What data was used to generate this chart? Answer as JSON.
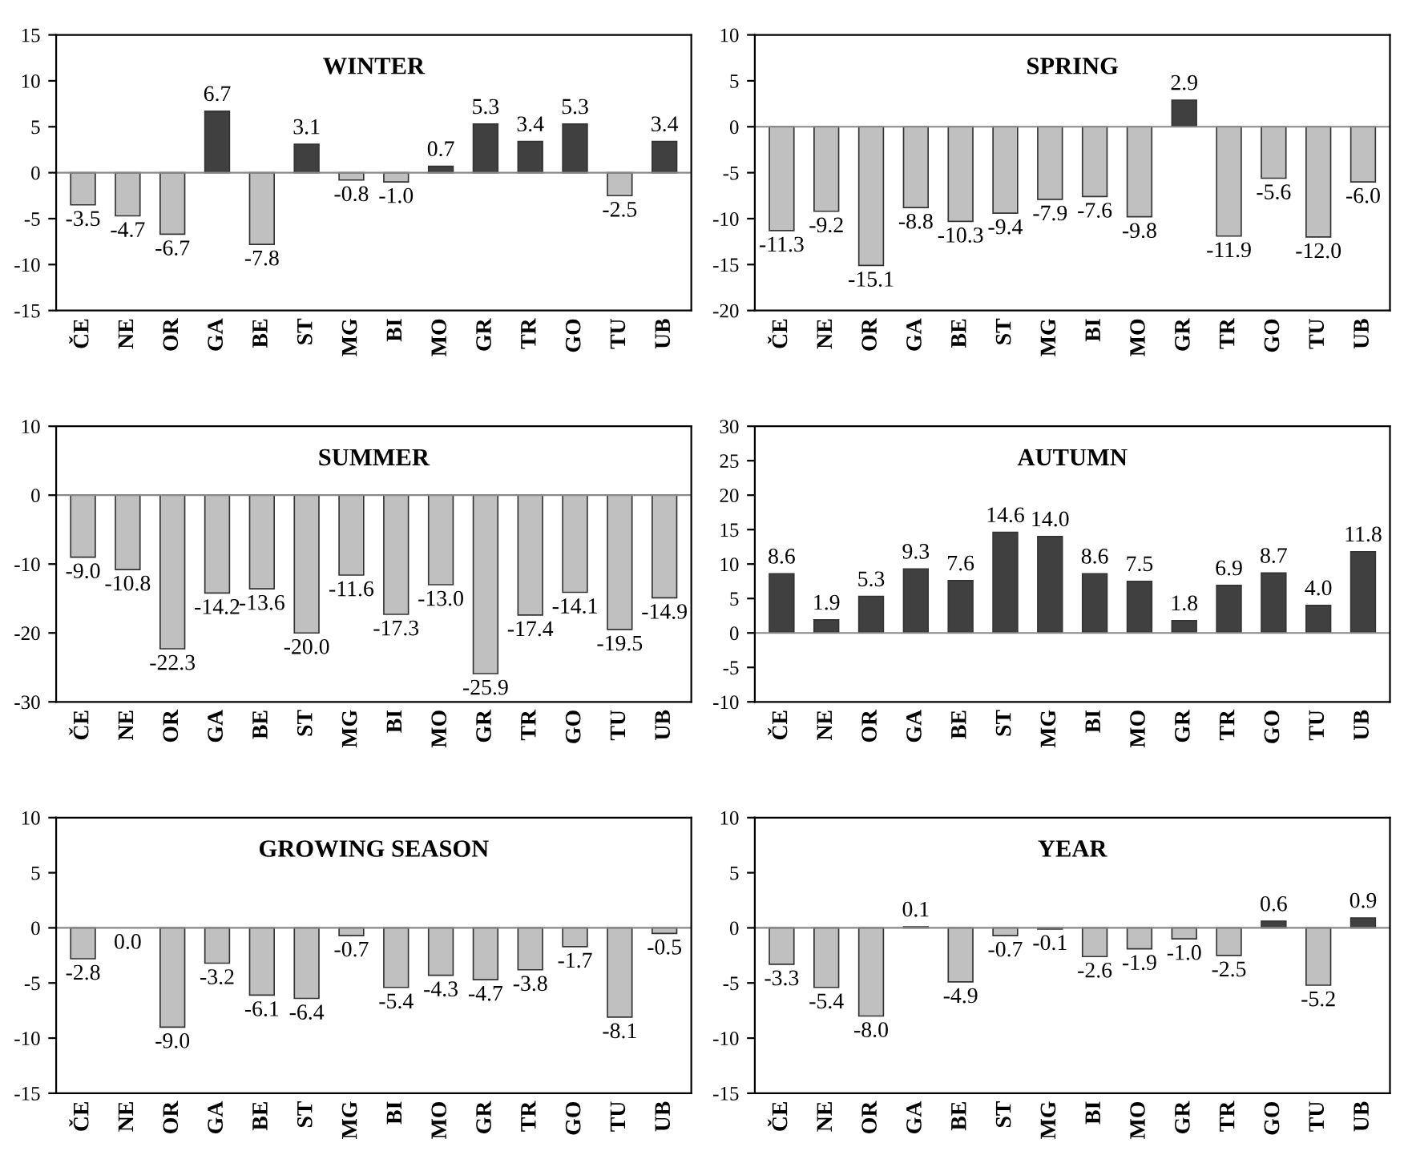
{
  "chart_data": [
    {
      "type": "bar",
      "title": "WINTER",
      "categories": [
        "ČE",
        "NE",
        "OR",
        "GA",
        "BE",
        "ST",
        "MG",
        "BI",
        "MO",
        "GR",
        "TR",
        "GO",
        "TU",
        "UB"
      ],
      "values": [
        -3.5,
        -4.7,
        -6.7,
        6.7,
        -7.8,
        3.1,
        -0.8,
        -1.0,
        0.7,
        5.3,
        3.4,
        5.3,
        -2.5,
        3.4
      ],
      "value_labels": [
        "-3.5",
        "-4.7",
        "-6.7",
        "6.7",
        "-7.8",
        "3.1",
        "-0.8",
        "-1.0",
        "0.7",
        "5.3",
        "3.4",
        "5.3",
        "-2.5",
        "3.4"
      ],
      "colors": [
        "#c0c0c0",
        "#c0c0c0",
        "#c0c0c0",
        "#404040",
        "#c0c0c0",
        "#404040",
        "#c0c0c0",
        "#c0c0c0",
        "#404040",
        "#404040",
        "#404040",
        "#404040",
        "#c0c0c0",
        "#404040"
      ],
      "ylim": [
        -15,
        15
      ],
      "yticks": [
        -15,
        -10,
        -5,
        0,
        5,
        10,
        15
      ]
    },
    {
      "type": "bar",
      "title": "SPRING",
      "categories": [
        "ČE",
        "NE",
        "OR",
        "GA",
        "BE",
        "ST",
        "MG",
        "BI",
        "MO",
        "GR",
        "TR",
        "GO",
        "TU",
        "UB"
      ],
      "values": [
        -11.3,
        -9.2,
        -15.1,
        -8.8,
        -10.3,
        -9.4,
        -7.9,
        -7.6,
        -9.8,
        2.9,
        -11.9,
        -5.6,
        -12.0,
        -6.0
      ],
      "value_labels": [
        "-11.3",
        "-9.2",
        "-15.1",
        "-8.8",
        "-10.3",
        "-9.4",
        "-7.9",
        "-7.6",
        "-9.8",
        "2.9",
        "-11.9",
        "-5.6",
        "-12.0",
        "-6.0"
      ],
      "colors": [
        "#c0c0c0",
        "#c0c0c0",
        "#c0c0c0",
        "#c0c0c0",
        "#c0c0c0",
        "#c0c0c0",
        "#c0c0c0",
        "#c0c0c0",
        "#c0c0c0",
        "#404040",
        "#c0c0c0",
        "#c0c0c0",
        "#c0c0c0",
        "#c0c0c0"
      ],
      "ylim": [
        -20,
        10
      ],
      "yticks": [
        -20,
        -15,
        -10,
        -5,
        0,
        5,
        10
      ]
    },
    {
      "type": "bar",
      "title": "SUMMER",
      "categories": [
        "ČE",
        "NE",
        "OR",
        "GA",
        "BE",
        "ST",
        "MG",
        "BI",
        "MO",
        "GR",
        "TR",
        "GO",
        "TU",
        "UB"
      ],
      "values": [
        -9.0,
        -10.8,
        -22.3,
        -14.2,
        -13.6,
        -20.0,
        -11.6,
        -17.3,
        -13.0,
        -25.9,
        -17.4,
        -14.1,
        -19.5,
        -14.9
      ],
      "value_labels": [
        "-9.0",
        "-10.8",
        "-22.3",
        "-14.2",
        "-13.6",
        "-20.0",
        "-11.6",
        "-17.3",
        "-13.0",
        "-25.9",
        "-17.4",
        "-14.1",
        "-19.5",
        "-14.9"
      ],
      "colors": [
        "#c0c0c0",
        "#c0c0c0",
        "#c0c0c0",
        "#c0c0c0",
        "#c0c0c0",
        "#c0c0c0",
        "#c0c0c0",
        "#c0c0c0",
        "#c0c0c0",
        "#c0c0c0",
        "#c0c0c0",
        "#c0c0c0",
        "#c0c0c0",
        "#c0c0c0"
      ],
      "ylim": [
        -30,
        10
      ],
      "yticks": [
        -30,
        -20,
        -10,
        0,
        10
      ]
    },
    {
      "type": "bar",
      "title": "AUTUMN",
      "categories": [
        "ČE",
        "NE",
        "OR",
        "GA",
        "BE",
        "ST",
        "MG",
        "BI",
        "MO",
        "GR",
        "TR",
        "GO",
        "TU",
        "UB"
      ],
      "values": [
        8.6,
        1.9,
        5.3,
        9.3,
        7.6,
        14.6,
        14.0,
        8.6,
        7.5,
        1.8,
        6.9,
        8.7,
        4.0,
        11.8
      ],
      "value_labels": [
        "8.6",
        "1.9",
        "5.3",
        "9.3",
        "7.6",
        "14.6",
        "14.0",
        "8.6",
        "7.5",
        "1.8",
        "6.9",
        "8.7",
        "4.0",
        "11.8"
      ],
      "colors": [
        "#404040",
        "#404040",
        "#404040",
        "#404040",
        "#404040",
        "#404040",
        "#404040",
        "#404040",
        "#404040",
        "#404040",
        "#404040",
        "#404040",
        "#404040",
        "#404040"
      ],
      "ylim": [
        -10,
        30
      ],
      "yticks": [
        -10,
        -5,
        0,
        5,
        10,
        15,
        20,
        25,
        30
      ]
    },
    {
      "type": "bar",
      "title": "GROWING SEASON",
      "categories": [
        "ČE",
        "NE",
        "OR",
        "GA",
        "BE",
        "ST",
        "MG",
        "BI",
        "MO",
        "GR",
        "TR",
        "GO",
        "TU",
        "UB"
      ],
      "values": [
        -2.8,
        0.0,
        -9.0,
        -3.2,
        -6.1,
        -6.4,
        -0.7,
        -5.4,
        -4.3,
        -4.7,
        -3.8,
        -1.7,
        -8.1,
        -0.5
      ],
      "value_labels": [
        "-2.8",
        "0.0",
        "-9.0",
        "-3.2",
        "-6.1",
        "-6.4",
        "-0.7",
        "-5.4",
        "-4.3",
        "-4.7",
        "-3.8",
        "-1.7",
        "-8.1",
        "-0.5"
      ],
      "colors": [
        "#c0c0c0",
        "#c0c0c0",
        "#c0c0c0",
        "#c0c0c0",
        "#c0c0c0",
        "#c0c0c0",
        "#c0c0c0",
        "#c0c0c0",
        "#c0c0c0",
        "#c0c0c0",
        "#c0c0c0",
        "#c0c0c0",
        "#c0c0c0",
        "#c0c0c0"
      ],
      "ylim": [
        -15,
        10
      ],
      "yticks": [
        -15,
        -10,
        -5,
        0,
        5,
        10
      ]
    },
    {
      "type": "bar",
      "title": "YEAR",
      "categories": [
        "ČE",
        "NE",
        "OR",
        "GA",
        "BE",
        "ST",
        "MG",
        "BI",
        "MO",
        "GR",
        "TR",
        "GO",
        "TU",
        "UB"
      ],
      "values": [
        -3.3,
        -5.4,
        -8.0,
        0.1,
        -4.9,
        -0.7,
        -0.1,
        -2.6,
        -1.9,
        -1.0,
        -2.5,
        0.6,
        -5.2,
        0.9
      ],
      "value_labels": [
        "-3.3",
        "-5.4",
        "-8.0",
        "0.1",
        "-4.9",
        "-0.7",
        "-0.1",
        "-2.6",
        "-1.9",
        "-1.0",
        "-2.5",
        "0.6",
        "-5.2",
        "0.9"
      ],
      "colors": [
        "#c0c0c0",
        "#c0c0c0",
        "#c0c0c0",
        "#404040",
        "#c0c0c0",
        "#c0c0c0",
        "#c0c0c0",
        "#c0c0c0",
        "#c0c0c0",
        "#c0c0c0",
        "#c0c0c0",
        "#404040",
        "#c0c0c0",
        "#404040"
      ],
      "ylim": [
        -15,
        10
      ],
      "yticks": [
        -15,
        -10,
        -5,
        0,
        5,
        10
      ]
    }
  ]
}
